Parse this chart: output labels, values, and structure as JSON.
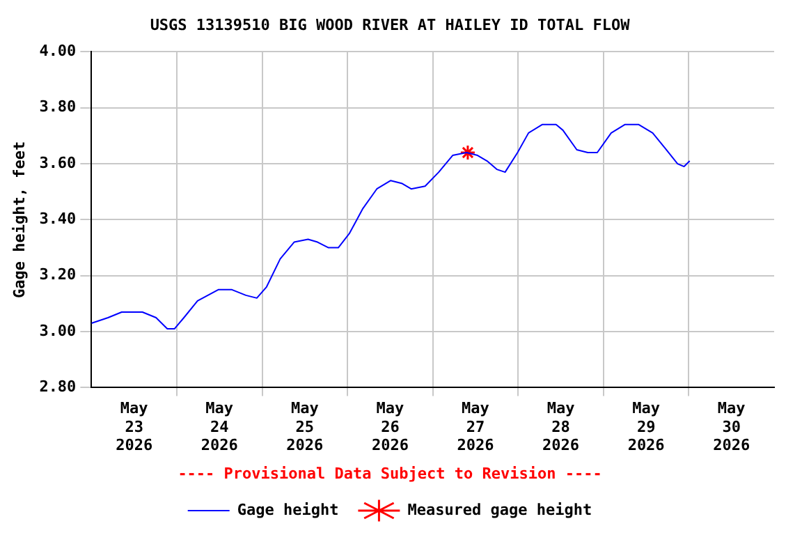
{
  "chart_data": {
    "type": "line",
    "title": "USGS 13139510 BIG WOOD RIVER AT HAILEY ID TOTAL FLOW",
    "ylabel": "Gage height, feet",
    "annotations": [
      "---- Provisional Data Subject to Revision ----"
    ],
    "series": [
      {
        "name": "Gage height",
        "type": "line",
        "color": "#0000ff",
        "marker": "none",
        "x": [
          "2026-05-23T00:00",
          "2026-05-23T04:40",
          "2026-05-23T08:30",
          "2026-05-23T14:20",
          "2026-05-23T18:10",
          "2026-05-23T21:20",
          "2026-05-23T23:20",
          "2026-05-24T02:00",
          "2026-05-24T05:50",
          "2026-05-24T11:40",
          "2026-05-24T15:30",
          "2026-05-24T19:25",
          "2026-05-24T22:30",
          "2026-05-25T01:15",
          "2026-05-25T05:05",
          "2026-05-25T09:00",
          "2026-05-25T12:55",
          "2026-05-25T15:35",
          "2026-05-25T18:40",
          "2026-05-25T21:25",
          "2026-05-26T00:30",
          "2026-05-26T04:20",
          "2026-05-26T08:15",
          "2026-05-26T12:10",
          "2026-05-26T15:15",
          "2026-05-26T17:55",
          "2026-05-26T21:50",
          "2026-05-27T01:40",
          "2026-05-27T05:35",
          "2026-05-27T09:30",
          "2026-05-27T12:35",
          "2026-05-27T15:15",
          "2026-05-27T18:00",
          "2026-05-27T20:20",
          "2026-05-27T23:50",
          "2026-05-28T02:55",
          "2026-05-28T06:45",
          "2026-05-28T10:40",
          "2026-05-28T12:35",
          "2026-05-28T16:30",
          "2026-05-28T19:35",
          "2026-05-28T22:15",
          "2026-05-29T02:10",
          "2026-05-29T06:00",
          "2026-05-29T09:55",
          "2026-05-29T13:50",
          "2026-05-29T17:40",
          "2026-05-29T20:50",
          "2026-05-29T22:40",
          "2026-05-30T00:15"
        ],
        "values": [
          3.03,
          3.05,
          3.07,
          3.07,
          3.05,
          3.01,
          3.01,
          3.05,
          3.11,
          3.15,
          3.15,
          3.13,
          3.12,
          3.16,
          3.26,
          3.32,
          3.33,
          3.32,
          3.3,
          3.3,
          3.35,
          3.44,
          3.51,
          3.54,
          3.53,
          3.51,
          3.52,
          3.57,
          3.63,
          3.64,
          3.63,
          3.61,
          3.58,
          3.57,
          3.64,
          3.71,
          3.74,
          3.74,
          3.72,
          3.65,
          3.64,
          3.64,
          3.71,
          3.74,
          3.74,
          3.71,
          3.65,
          3.6,
          3.59,
          3.61
        ]
      },
      {
        "name": "Measured gage height",
        "type": "scatter",
        "color": "#ff0000",
        "marker": "cross",
        "x": [
          "2026-05-27T09:50"
        ],
        "values": [
          3.64
        ]
      }
    ],
    "xlim": [
      "2026-05-23T00:00",
      "2026-05-31T00:00"
    ],
    "xticks": [
      {
        "value": "2026-05-23T12:00",
        "label": "May\n23\n2026"
      },
      {
        "value": "2026-05-24T00:00",
        "label": null
      },
      {
        "value": "2026-05-24T12:00",
        "label": "May\n24\n2026"
      },
      {
        "value": "2026-05-25T00:00",
        "label": null
      },
      {
        "value": "2026-05-25T12:00",
        "label": "May\n25\n2026"
      },
      {
        "value": "2026-05-26T00:00",
        "label": null
      },
      {
        "value": "2026-05-26T12:00",
        "label": "May\n26\n2026"
      },
      {
        "value": "2026-05-27T00:00",
        "label": null
      },
      {
        "value": "2026-05-27T12:00",
        "label": "May\n27\n2026"
      },
      {
        "value": "2026-05-28T00:00",
        "label": null
      },
      {
        "value": "2026-05-28T12:00",
        "label": "May\n28\n2026"
      },
      {
        "value": "2026-05-29T00:00",
        "label": null
      },
      {
        "value": "2026-05-29T12:00",
        "label": "May\n29\n2026"
      },
      {
        "value": "2026-05-30T00:00",
        "label": null
      },
      {
        "value": "2026-05-30T12:00",
        "label": "May\n30\n2026"
      }
    ],
    "ylim": [
      2.8,
      4.0
    ],
    "yticks": [
      {
        "value": 2.8,
        "label": "2.80"
      },
      {
        "value": 3.0,
        "label": "3.00"
      },
      {
        "value": 3.2,
        "label": "3.20"
      },
      {
        "value": 3.4,
        "label": "3.40"
      },
      {
        "value": 3.6,
        "label": "3.60"
      },
      {
        "value": 3.8,
        "label": "3.80"
      },
      {
        "value": 4.0,
        "label": "4.00"
      }
    ],
    "grid": true,
    "legend": "bottom"
  }
}
